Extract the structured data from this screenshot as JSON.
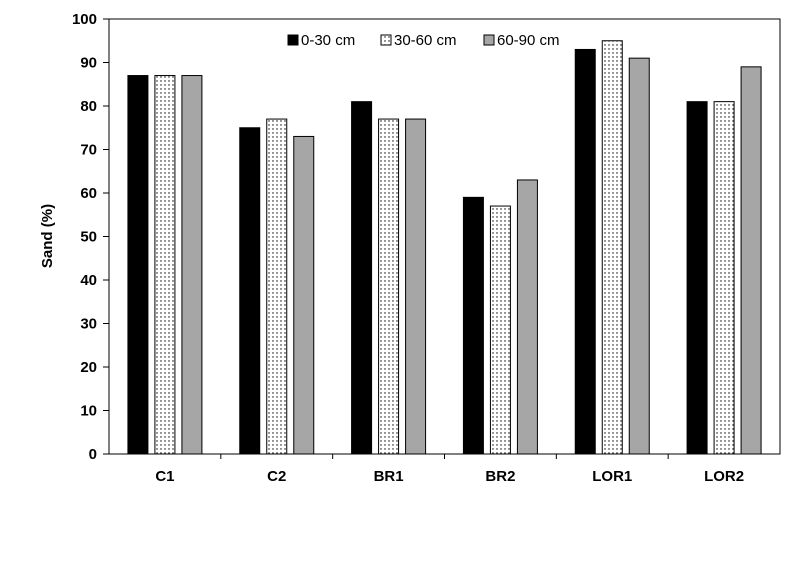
{
  "chart_data": {
    "type": "bar",
    "categories": [
      "C1",
      "C2",
      "BR1",
      "BR2",
      "LOR1",
      "LOR2"
    ],
    "series": [
      {
        "name": "0-30 cm",
        "values": [
          87,
          75,
          81,
          59,
          93,
          81
        ],
        "color": "#000000",
        "pattern": "solid"
      },
      {
        "name": "30-60 cm",
        "values": [
          87,
          77,
          77,
          57,
          95,
          81
        ],
        "color": "#ffffff",
        "pattern": "dots"
      },
      {
        "name": "60-90 cm",
        "values": [
          87,
          73,
          77,
          63,
          91,
          89
        ],
        "color": "#a6a6a6",
        "pattern": "solid"
      }
    ],
    "ylabel": "Sand (%)",
    "ylim": [
      0,
      100
    ],
    "yticks": [
      "0",
      "10",
      "20",
      "30",
      "40",
      "50",
      "60",
      "70",
      "80",
      "90",
      "100"
    ],
    "grid": false,
    "legend_position": "top-right"
  }
}
